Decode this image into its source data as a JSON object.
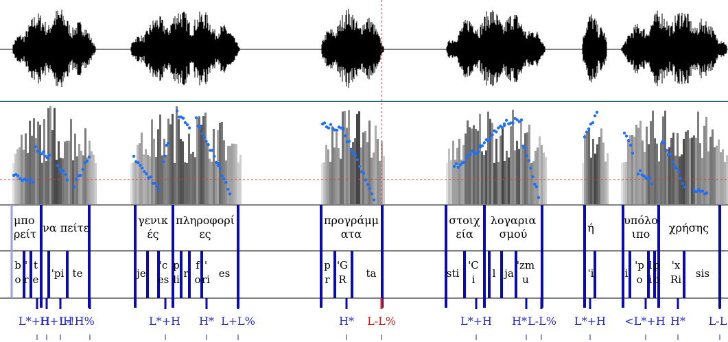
{
  "colors": {
    "boundary": "#0a0ab0",
    "pitch": "#1f6fff",
    "tone_text": "#2a2ad0",
    "boundary_tone_highlight": "#d42020",
    "waveform": "#000000",
    "divider": "#2a6a6a"
  },
  "words": [
    {
      "line1": "μπο",
      "line2": "ρείτ"
    },
    {
      "line1": "να πείτε",
      "line2": ""
    },
    {
      "line1": "γενικ",
      "line2": "ές"
    },
    {
      "line1": "πληροφορί",
      "line2": "ες"
    },
    {
      "line1": "προγράμμ",
      "line2": "ατα"
    },
    {
      "line1": "στοιχ",
      "line2": "εία"
    },
    {
      "line1": "λογαρια",
      "line2": "σμού"
    },
    {
      "line1": "ή",
      "line2": ""
    },
    {
      "line1": "υπόλο",
      "line2": "ιπο"
    },
    {
      "line1": "χρήσης",
      "line2": ""
    }
  ],
  "syllables": [
    {
      "line1": "b",
      "line2": "o"
    },
    {
      "line1": "'",
      "line2": "r"
    },
    {
      "line1": "t",
      "line2": "e"
    },
    {
      "line1": "'pi",
      "line2": ""
    },
    {
      "line1": "te",
      "line2": ""
    },
    {
      "line1": "je",
      "line2": ""
    },
    {
      "line1": "'c",
      "line2": "es"
    },
    {
      "line1": "p",
      "line2": "li"
    },
    {
      "line1": "r",
      "line2": ""
    },
    {
      "line1": "f",
      "line2": "o"
    },
    {
      "line1": "'",
      "line2": "ri"
    },
    {
      "line1": "es",
      "line2": ""
    },
    {
      "line1": "p",
      "line2": "r"
    },
    {
      "line1": "'G",
      "line2": "R"
    },
    {
      "line1": "ta",
      "line2": ""
    },
    {
      "line1": "sti",
      "line2": ""
    },
    {
      "line1": "'C",
      "line2": "i"
    },
    {
      "line1": "l",
      "line2": ""
    },
    {
      "line1": "ja",
      "line2": ""
    },
    {
      "line1": "'zm",
      "line2": "u"
    },
    {
      "line1": "'i",
      "line2": ""
    },
    {
      "line1": "i",
      "line2": ""
    },
    {
      "line1": "'p",
      "line2": "o"
    },
    {
      "line1": "l",
      "line2": "i"
    },
    {
      "line1": "p",
      "line2": "o"
    },
    {
      "line1": "'x",
      "line2": "Ri"
    },
    {
      "line1": "sis",
      "line2": ""
    }
  ],
  "tones": [
    {
      "text": "L*+H",
      "accent": false
    },
    {
      "text": "H+!H",
      "accent": false
    },
    {
      "text": "L-!H%",
      "accent": false
    },
    {
      "text": "L*+H",
      "accent": false
    },
    {
      "text": "H*",
      "accent": false
    },
    {
      "text": "L+L%",
      "accent": false
    },
    {
      "text": "H*",
      "accent": false
    },
    {
      "text": "L-L%",
      "accent": true
    },
    {
      "text": "L*+H",
      "accent": false
    },
    {
      "text": "H*",
      "accent": false
    },
    {
      "text": "L-L%",
      "accent": false
    },
    {
      "text": "L*+H",
      "accent": false
    },
    {
      "text": "<L*+H",
      "accent": false
    },
    {
      "text": "H*",
      "accent": false
    },
    {
      "text": "L-L",
      "accent": false
    }
  ]
}
